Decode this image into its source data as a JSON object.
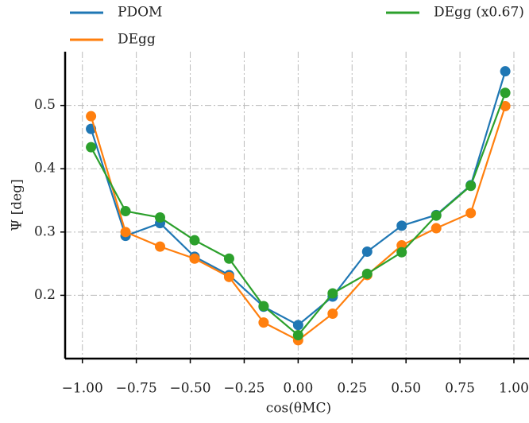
{
  "chart_data": {
    "type": "line",
    "xlabel": "cos(θMC)",
    "ylabel": "Ψ [deg]",
    "x": [
      -0.96,
      -0.8,
      -0.64,
      -0.48,
      -0.32,
      -0.16,
      0,
      0.16,
      0.32,
      0.48,
      0.64,
      0.8,
      0.96
    ],
    "series": [
      {
        "name": "PDOM",
        "color": "#1f77b4",
        "values": [
          0.463,
          0.294,
          0.314,
          0.261,
          0.232,
          0.182,
          0.153,
          0.198,
          0.269,
          0.31,
          0.327,
          0.374,
          0.554
        ]
      },
      {
        "name": "DEgg",
        "color": "#ff7f0e",
        "values": [
          0.483,
          0.3,
          0.277,
          0.258,
          0.229,
          0.157,
          0.129,
          0.171,
          0.232,
          0.279,
          0.306,
          0.33,
          0.499
        ]
      },
      {
        "name": "DEgg (x0.67)",
        "color": "#2ca02c",
        "values": [
          0.434,
          0.333,
          0.323,
          0.287,
          0.258,
          0.183,
          0.137,
          0.203,
          0.234,
          0.268,
          0.326,
          0.373,
          0.52
        ]
      }
    ],
    "xlim": [
      -1.08,
      1.07
    ],
    "ylim": [
      0.1,
      0.585
    ],
    "xticks": [
      {
        "value": -1,
        "label": "−1.00"
      },
      {
        "value": -0.75,
        "label": "−0.75"
      },
      {
        "value": -0.5,
        "label": "−0.50"
      },
      {
        "value": -0.25,
        "label": "−0.25"
      },
      {
        "value": 0,
        "label": "0.00"
      },
      {
        "value": 0.25,
        "label": "0.25"
      },
      {
        "value": 0.5,
        "label": "0.50"
      },
      {
        "value": 0.75,
        "label": "0.75"
      },
      {
        "value": 1,
        "label": "1.00"
      }
    ],
    "yticks": [
      0.2,
      0.3,
      0.4,
      0.5
    ],
    "grid": true
  }
}
